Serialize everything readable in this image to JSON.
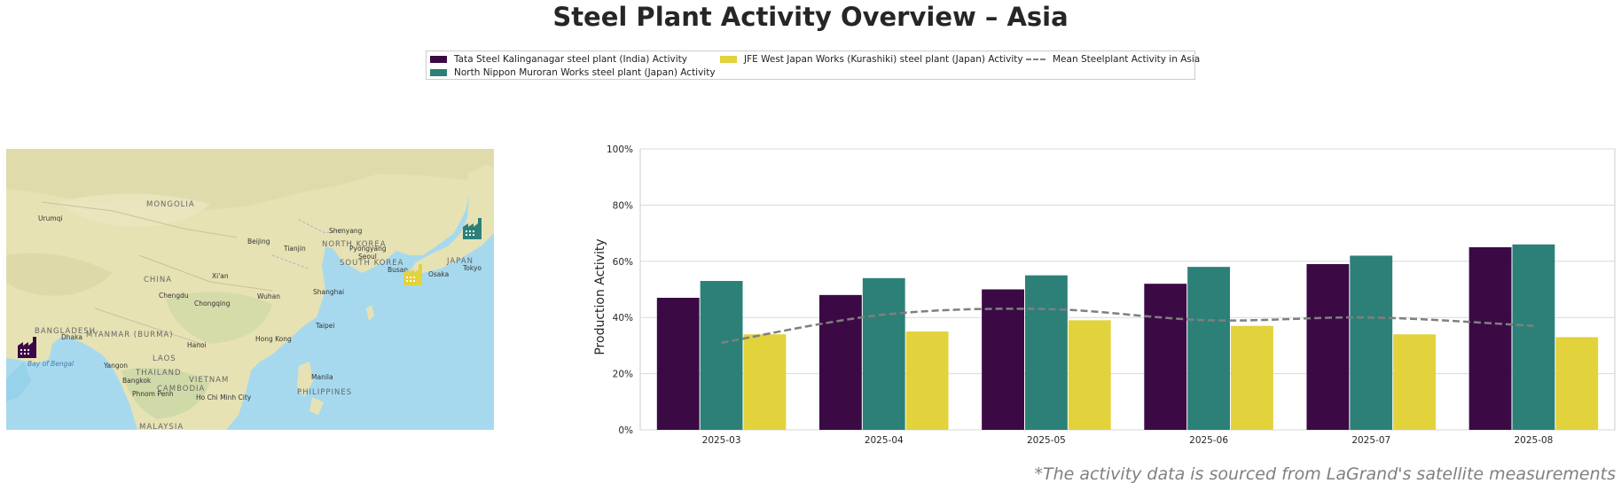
{
  "title": "Steel Plant Activity Overview – Asia",
  "footnote": "*The activity data is sourced from LaGrand's satellite measurements",
  "legend": [
    {
      "label": "Tata Steel Kalinganagar steel plant (India) Activity",
      "color": "#3b0a45",
      "kind": "bar"
    },
    {
      "label": "North Nippon Muroran Works steel plant (Japan) Activity",
      "color": "#2c8078",
      "kind": "bar"
    },
    {
      "label": "JFE West Japan Works (Kurashiki) steel plant (Japan) Activity",
      "color": "#e2d23c",
      "kind": "bar"
    },
    {
      "label": "Mean Steelplant Activity in Asia",
      "color": "#7f7f7f",
      "kind": "dashed-line"
    }
  ],
  "map": {
    "labels": {
      "mongolia": "MONGOLIA",
      "china": "CHINA",
      "north_korea": "NORTH KOREA",
      "south_korea": "SOUTH KOREA",
      "japan": "JAPAN",
      "laos": "LAOS",
      "thailand": "THAILAND",
      "vietnam": "VIETNAM",
      "cambodia": "CAMBODIA",
      "philippines": "PHILIPPINES",
      "malaysia": "MALAYSIA",
      "bangladesh": "BANGLADESH",
      "myanmar": "MYANMAR (BURMA)",
      "bay_of_bengal": "Bay of Bengal",
      "urumqi": "Urumqi",
      "beijing": "Beijing",
      "tianjin": "Tianjin",
      "shenyang": "Shenyang",
      "pyongyang": "Pyongyang",
      "seoul": "Seoul",
      "busan": "Busan",
      "osaka": "Osaka",
      "tokyo": "Tokyo",
      "xian": "Xi'an",
      "chengdu": "Chengdu",
      "chongqing": "Chongqing",
      "wuhan": "Wuhan",
      "shanghai": "Shanghai",
      "taipei": "Taipei",
      "hong_kong": "Hong Kong",
      "hanoi": "Hanoi",
      "dhaka": "Dhaka",
      "yangon": "Yangon",
      "bangkok": "Bangkok",
      "phnom_penh": "Phnom Penh",
      "ho_chi_minh": "Ho Chi Minh City",
      "manila": "Manila"
    },
    "markers": [
      {
        "plant": "Tata Steel Kalinganagar steel plant (India)",
        "color": "#3b0a45",
        "icon": "factory-icon"
      },
      {
        "plant": "North Nippon Muroran Works steel plant (Japan)",
        "color": "#2c8078",
        "icon": "factory-icon"
      },
      {
        "plant": "JFE West Japan Works (Kurashiki) steel plant (Japan)",
        "color": "#e2d23c",
        "icon": "factory-icon"
      }
    ]
  },
  "chart_data": {
    "type": "bar",
    "categories": [
      "2025-03",
      "2025-04",
      "2025-05",
      "2025-06",
      "2025-07",
      "2025-08"
    ],
    "series": [
      {
        "name": "Tata Steel Kalinganagar steel plant (India) Activity",
        "color": "#3b0a45",
        "values": [
          47,
          48,
          50,
          52,
          59,
          65
        ]
      },
      {
        "name": "North Nippon Muroran Works steel plant (Japan) Activity",
        "color": "#2c8078",
        "values": [
          53,
          54,
          55,
          58,
          62,
          66
        ]
      },
      {
        "name": "JFE West Japan Works (Kurashiki) steel plant (Japan) Activity",
        "color": "#e2d23c",
        "values": [
          34,
          35,
          39,
          37,
          34,
          33
        ]
      }
    ],
    "line_series": {
      "name": "Mean Steelplant Activity in Asia",
      "color": "#7f7f7f",
      "style": "dashed",
      "values": [
        31,
        41,
        43,
        39,
        40,
        37
      ]
    },
    "ylabel": "Production Activity",
    "xlabel": "",
    "ylim": [
      0,
      100
    ],
    "yticks": [
      "0%",
      "20%",
      "40%",
      "60%",
      "80%",
      "100%"
    ],
    "grid": "horizontal"
  }
}
